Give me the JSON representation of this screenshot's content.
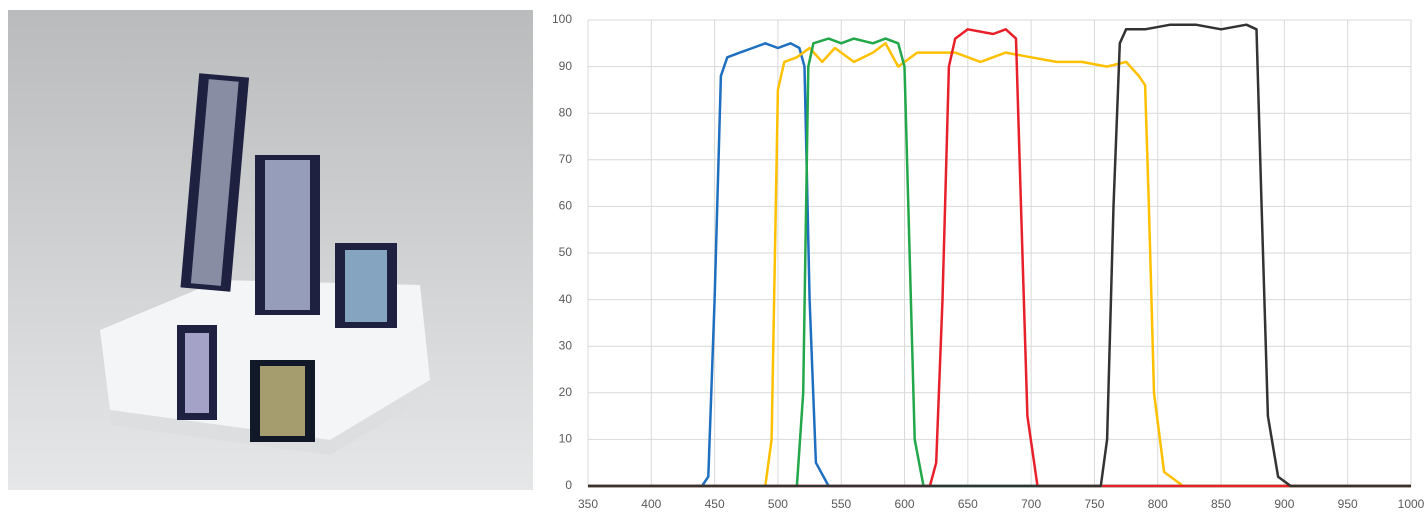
{
  "chart_data": {
    "type": "line",
    "xlim": [
      350,
      1000
    ],
    "xticks": [
      350,
      400,
      450,
      500,
      550,
      600,
      650,
      700,
      750,
      800,
      850,
      900,
      950,
      1000
    ],
    "ylim": [
      0,
      100
    ],
    "yticks": [
      0,
      10,
      20,
      30,
      40,
      50,
      60,
      70,
      80,
      90,
      100
    ],
    "grid": true,
    "series": [
      {
        "color": "#1f6fc0",
        "x": [
          350,
          440,
          445,
          450,
          455,
          460,
          470,
          480,
          490,
          500,
          510,
          517,
          521,
          525,
          530,
          540,
          1000
        ],
        "values": [
          0,
          0,
          2,
          40,
          88,
          92,
          93,
          94,
          95,
          94,
          95,
          94,
          90,
          40,
          5,
          0,
          0
        ]
      },
      {
        "color": "#ffc000",
        "x": [
          350,
          490,
          495,
          500,
          505,
          515,
          525,
          535,
          545,
          560,
          575,
          585,
          595,
          610,
          640,
          660,
          680,
          700,
          720,
          740,
          760,
          775,
          785,
          790,
          793,
          797,
          805,
          820,
          1000
        ],
        "values": [
          0,
          0,
          10,
          85,
          91,
          92,
          94,
          91,
          94,
          91,
          93,
          95,
          90,
          93,
          93,
          91,
          93,
          92,
          91,
          91,
          90,
          91,
          88,
          86,
          60,
          20,
          3,
          0,
          0
        ]
      },
      {
        "color": "#22a74a",
        "x": [
          350,
          515,
          520,
          524,
          528,
          540,
          550,
          560,
          575,
          585,
          595,
          600,
          604,
          608,
          615,
          1000
        ],
        "values": [
          0,
          0,
          20,
          90,
          95,
          96,
          95,
          96,
          95,
          96,
          95,
          90,
          50,
          10,
          0,
          0
        ]
      },
      {
        "color": "#e8202a",
        "x": [
          350,
          620,
          625,
          630,
          635,
          640,
          650,
          670,
          680,
          688,
          692,
          697,
          705,
          1000
        ],
        "values": [
          0,
          0,
          5,
          40,
          90,
          96,
          98,
          97,
          98,
          96,
          60,
          15,
          0,
          0
        ]
      },
      {
        "color": "#333333",
        "x": [
          350,
          755,
          760,
          765,
          770,
          775,
          790,
          810,
          830,
          850,
          870,
          878,
          882,
          887,
          895,
          905,
          1000
        ],
        "values": [
          0,
          0,
          10,
          60,
          95,
          98,
          98,
          99,
          99,
          98,
          99,
          98,
          60,
          15,
          2,
          0,
          0
        ]
      }
    ]
  }
}
